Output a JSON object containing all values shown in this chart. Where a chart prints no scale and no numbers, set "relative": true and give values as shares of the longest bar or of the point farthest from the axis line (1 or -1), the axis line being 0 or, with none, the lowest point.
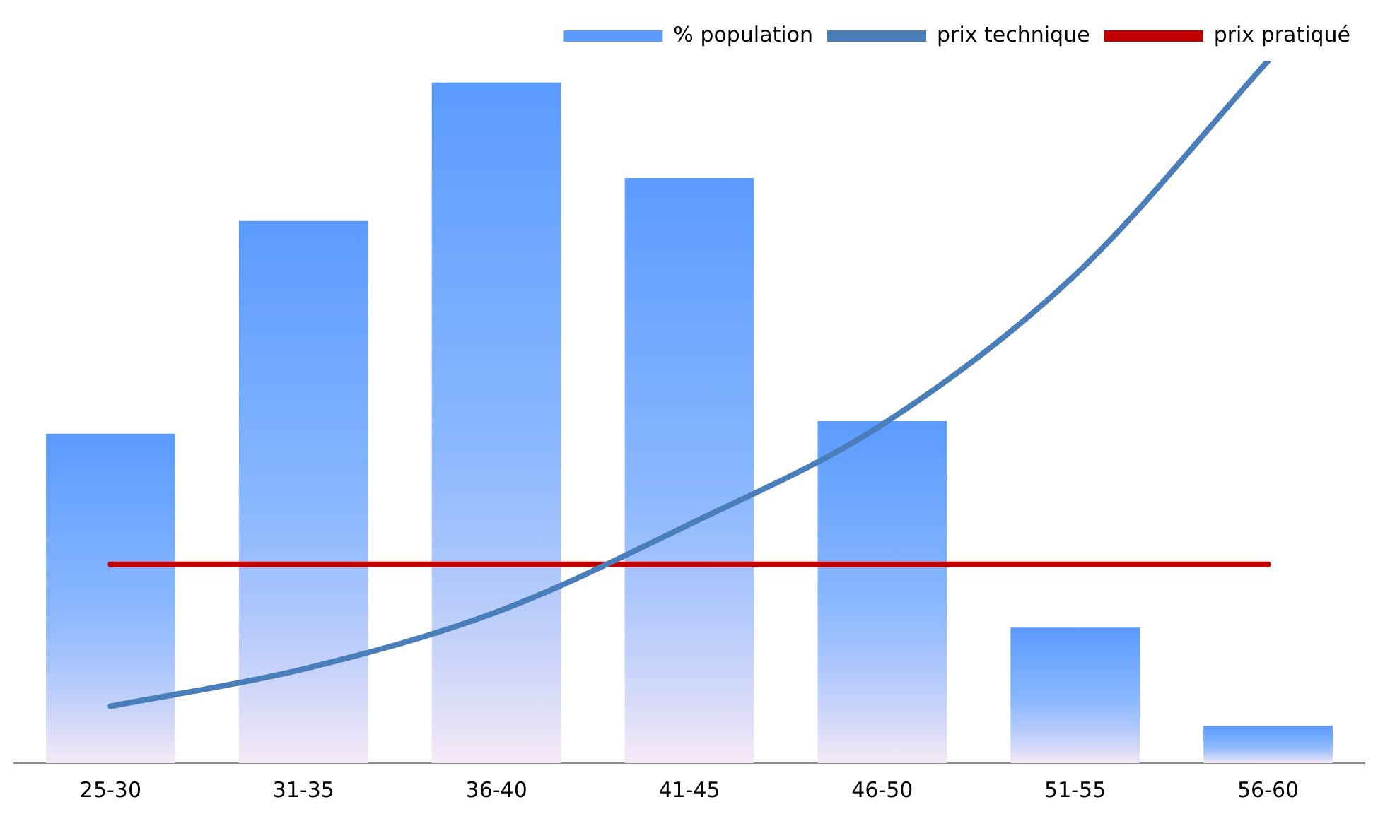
{
  "chart_data": {
    "type": "bar",
    "relative": true,
    "legend": "top right",
    "grid": false,
    "categories": [
      "25-30",
      "31-35",
      "36-40",
      "41-45",
      "46-50",
      "51-55",
      "56-60"
    ],
    "series": [
      {
        "name": "% population",
        "color": "#5b9bff",
        "values": [
          0.469,
          0.772,
          0.969,
          0.833,
          0.487,
          0.193,
          0.053
        ]
      },
      {
        "name": "prix technique",
        "type": "line",
        "color": "#4a7ebb",
        "values": [
          0.081,
          0.134,
          0.215,
          0.34,
          0.482,
          0.695,
          1
        ]
      },
      {
        "name": "prix pratiqué",
        "type": "line",
        "color": "#c00000",
        "values": [
          0.283,
          0.283,
          0.283,
          0.283,
          0.283,
          0.283,
          0.283
        ]
      }
    ]
  }
}
